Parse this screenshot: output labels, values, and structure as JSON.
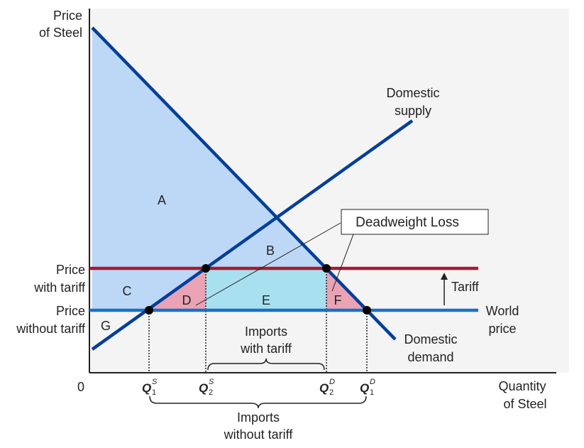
{
  "axes": {
    "y_title_line1": "Price",
    "y_title_line2": "of Steel",
    "x_title_line1": "Quantity",
    "x_title_line2": "of Steel",
    "origin": "0"
  },
  "price_labels": {
    "with_tariff_line1": "Price",
    "with_tariff_line2": "with tariff",
    "without_tariff_line1": "Price",
    "without_tariff_line2": "without tariff"
  },
  "curve_labels": {
    "supply_line1": "Domestic",
    "supply_line2": "supply",
    "demand_line1": "Domestic",
    "demand_line2": "demand",
    "world_line1": "World",
    "world_line2": "price",
    "tariff": "Tariff"
  },
  "areas": {
    "a": "A",
    "b": "B",
    "c": "C",
    "d": "D",
    "e": "E",
    "f": "F",
    "g": "G"
  },
  "deadweight_loss": "Deadweight Loss",
  "quantities": {
    "q_letter": "Q",
    "q1s_sup": "S",
    "q1s_sub": "1",
    "q2s_sup": "S",
    "q2s_sub": "2",
    "q2d_sup": "D",
    "q2d_sub": "2",
    "q1d_sup": "D",
    "q1d_sub": "1"
  },
  "braces": {
    "imports_with_tariff_line1": "Imports",
    "imports_with_tariff_line2": "with tariff",
    "imports_without_tariff_line1": "Imports",
    "imports_without_tariff_line2": "without tariff"
  },
  "colors": {
    "axis": "#222222",
    "curves": "#003f9a",
    "world_price": "#1a72c4",
    "tariff_line": "#a8192e",
    "consumer_surplus": "#bdd7f6",
    "deadweight": "#eaa3b4",
    "tariff_revenue": "#a9e0ef"
  }
}
